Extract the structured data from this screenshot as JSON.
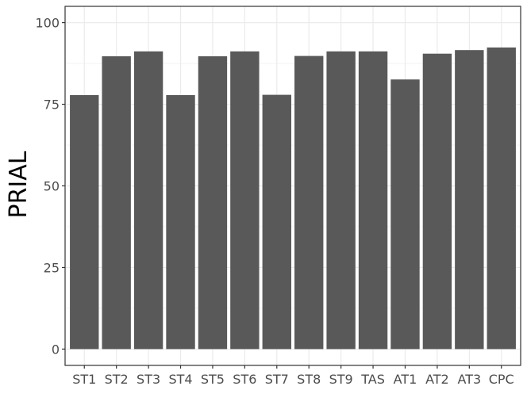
{
  "chart_data": {
    "type": "bar",
    "categories": [
      "ST1",
      "ST2",
      "ST3",
      "ST4",
      "ST5",
      "ST6",
      "ST7",
      "ST8",
      "ST9",
      "TAS",
      "AT1",
      "AT2",
      "AT3",
      "CPC"
    ],
    "values": [
      77.8,
      89.7,
      91.2,
      77.8,
      89.7,
      91.2,
      77.9,
      89.8,
      91.2,
      91.2,
      82.6,
      90.5,
      91.6,
      92.4
    ],
    "xlabel": "",
    "ylabel": "PRIAL",
    "ylim": [
      0,
      100
    ],
    "yticks": [
      0,
      25,
      50,
      75,
      100
    ],
    "grid": true,
    "bar_color": "#595959",
    "grid_color": "#ebebeb",
    "panel_border_color": "#333333"
  }
}
